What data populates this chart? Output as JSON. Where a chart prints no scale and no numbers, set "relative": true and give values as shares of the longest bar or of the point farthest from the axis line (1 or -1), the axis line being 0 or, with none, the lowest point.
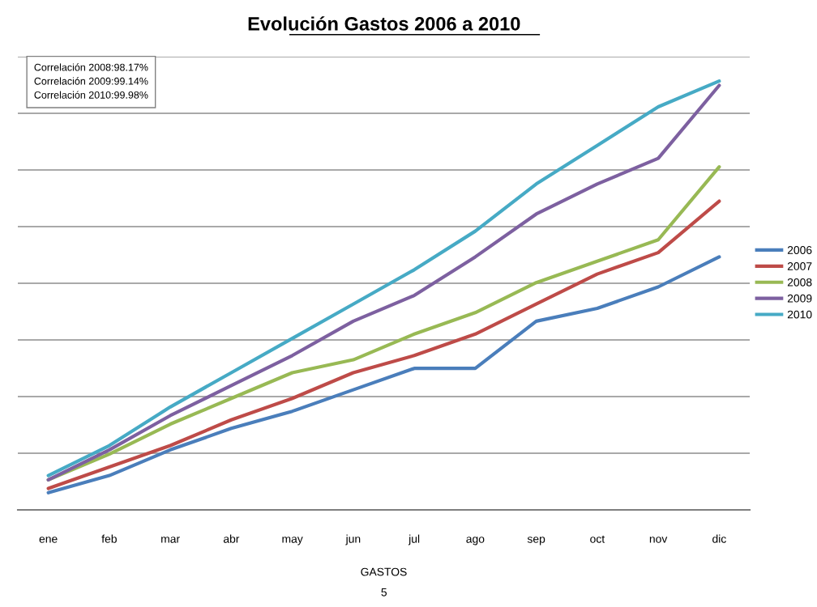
{
  "chart_data": {
    "type": "line",
    "title": "Evolución Gastos 2006 a 2010",
    "xlabel": "GASTOS",
    "categories": [
      "ene",
      "feb",
      "mar",
      "abr",
      "may",
      "jun",
      "jul",
      "ago",
      "sep",
      "oct",
      "nov",
      "dic"
    ],
    "relative": true,
    "grid": "y",
    "legend": "right",
    "marker": "none",
    "line_style": "solid",
    "series": [
      {
        "name": "2006",
        "color": "#4a7ebb",
        "values": [
          0.04,
          0.08,
          0.14,
          0.19,
          0.23,
          0.28,
          0.33,
          0.33,
          0.44,
          0.47,
          0.52,
          0.59
        ]
      },
      {
        "name": "2007",
        "color": "#be4b48",
        "values": [
          0.05,
          0.1,
          0.15,
          0.21,
          0.26,
          0.32,
          0.36,
          0.41,
          0.48,
          0.55,
          0.6,
          0.72
        ]
      },
      {
        "name": "2008",
        "color": "#98b954",
        "values": [
          0.07,
          0.13,
          0.2,
          0.26,
          0.32,
          0.35,
          0.41,
          0.46,
          0.53,
          0.58,
          0.63,
          0.8
        ]
      },
      {
        "name": "2009",
        "color": "#7d60a0",
        "values": [
          0.07,
          0.14,
          0.22,
          0.29,
          0.36,
          0.44,
          0.5,
          0.59,
          0.69,
          0.76,
          0.82,
          0.99
        ]
      },
      {
        "name": "2010",
        "color": "#46aac5",
        "values": [
          0.08,
          0.15,
          0.24,
          0.32,
          0.4,
          0.48,
          0.56,
          0.65,
          0.76,
          0.85,
          0.94,
          1.0
        ]
      }
    ],
    "annotations": [
      "Correlación 2008:98.17%\nCorrelación 2009:99.14%\nCorrelación 2010:99.98%",
      "5"
    ]
  }
}
